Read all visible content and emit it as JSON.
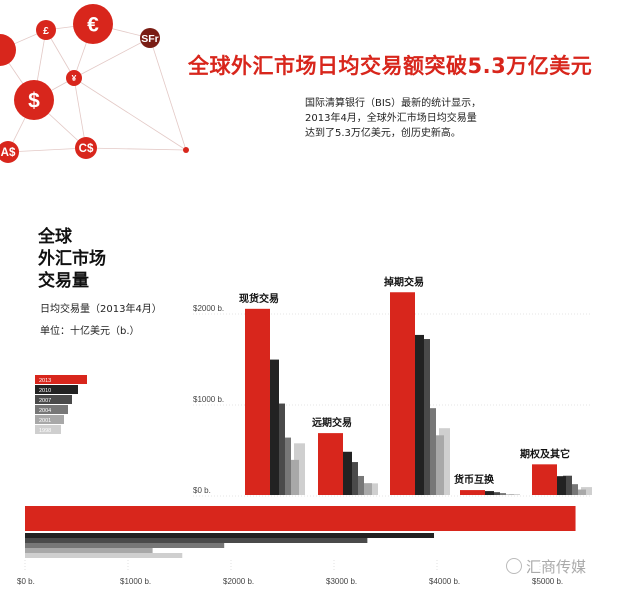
{
  "header": {
    "title": "全球外汇市场日均交易额突破5.3万亿美元",
    "subtitle_lines": [
      "国际清算银行（BIS）最新的统计显示，",
      "2013年4月，全球外汇市场日均交易量",
      "达到了5.3万亿美元，创历史新高。"
    ]
  },
  "decor": {
    "currency_symbols": [
      "€",
      "£",
      "$",
      "¥",
      "C$",
      "A$",
      "SFr"
    ]
  },
  "chart_title": {
    "line1": "全球",
    "line2": "外汇市场",
    "line3": "交易量",
    "subtitle": "日均交易量（2013年4月）",
    "unit": "单位：十亿美元（b.）"
  },
  "watermark": "汇商传媒",
  "colors": {
    "accent": "#d8261c",
    "series": [
      "#d8261c",
      "#222222",
      "#4a4a4a",
      "#777777",
      "#a8a8a8",
      "#cfcfcf"
    ]
  },
  "chart_data": [
    {
      "type": "bar",
      "categories": [
        "现货交易",
        "远期交易",
        "掉期交易",
        "货币互换",
        "期权及其它"
      ],
      "series": [
        {
          "name": "2013",
          "values": [
            2046,
            680,
            2228,
            54,
            337
          ]
        },
        {
          "name": "2010",
          "values": [
            1488,
            475,
            1759,
            43,
            207
          ]
        },
        {
          "name": "2007",
          "values": [
            1005,
            362,
            1714,
            31,
            212
          ]
        },
        {
          "name": "2004",
          "values": [
            631,
            209,
            954,
            21,
            119
          ]
        },
        {
          "name": "2001",
          "values": [
            386,
            130,
            656,
            7,
            60
          ]
        },
        {
          "name": "1998",
          "values": [
            568,
            128,
            734,
            10,
            87
          ]
        }
      ],
      "yticks": [
        "$0 b.",
        "$1000 b.",
        "$2000 b."
      ],
      "ylim": [
        0,
        2400
      ]
    },
    {
      "type": "bar",
      "orientation": "horizontal",
      "series": [
        {
          "name": "2013",
          "values": [
            5345
          ]
        },
        {
          "name": "2010",
          "values": [
            3971
          ]
        },
        {
          "name": "2007",
          "values": [
            3324
          ]
        },
        {
          "name": "2004",
          "values": [
            1934
          ]
        },
        {
          "name": "2001",
          "values": [
            1239
          ]
        },
        {
          "name": "1998",
          "values": [
            1527
          ]
        }
      ],
      "xticks": [
        "$0 b.",
        "$1000 b.",
        "$2000 b.",
        "$3000 b.",
        "$4000 b.",
        "$5000 b."
      ],
      "xlim": [
        0,
        5400
      ]
    }
  ]
}
